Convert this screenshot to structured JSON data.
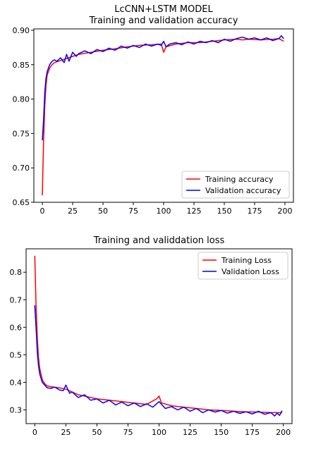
{
  "chart_data": [
    {
      "type": "line",
      "title": "LcCNN+LSTM MODEL\nTraining and validation accuracy",
      "xlabel": "",
      "ylabel": "",
      "xlim": [
        -7,
        207
      ],
      "ylim": [
        0.65,
        0.902
      ],
      "xticks": [
        0,
        25,
        50,
        75,
        100,
        125,
        150,
        175,
        200
      ],
      "yticks": [
        0.65,
        0.7,
        0.75,
        0.8,
        0.85,
        0.9
      ],
      "ytick_labels": [
        "0.65",
        "0.70",
        "0.75",
        "0.80",
        "0.85",
        "0.90"
      ],
      "legend": "lower-right",
      "grid": false,
      "series": [
        {
          "name": "Training accuracy",
          "color": "#ff0000",
          "x": [
            0,
            1,
            2,
            3,
            4,
            6,
            8,
            10,
            15,
            20,
            25,
            30,
            40,
            50,
            60,
            70,
            75,
            80,
            90,
            98,
            100,
            102,
            110,
            120,
            130,
            140,
            150,
            160,
            165,
            170,
            180,
            190,
            195,
            199
          ],
          "y": [
            0.66,
            0.74,
            0.79,
            0.82,
            0.835,
            0.845,
            0.85,
            0.853,
            0.856,
            0.859,
            0.862,
            0.865,
            0.868,
            0.871,
            0.873,
            0.876,
            0.877,
            0.878,
            0.879,
            0.88,
            0.868,
            0.876,
            0.88,
            0.882,
            0.882,
            0.884,
            0.886,
            0.887,
            0.886,
            0.887,
            0.886,
            0.887,
            0.888,
            0.884
          ]
        },
        {
          "name": "Validation accuracy",
          "color": "#0000ff",
          "x": [
            0,
            1,
            2,
            3,
            4,
            6,
            8,
            10,
            12,
            15,
            18,
            20,
            22,
            25,
            28,
            30,
            35,
            40,
            45,
            50,
            55,
            60,
            65,
            70,
            75,
            80,
            85,
            90,
            95,
            98,
            100,
            102,
            105,
            110,
            115,
            120,
            125,
            130,
            135,
            140,
            145,
            150,
            155,
            160,
            165,
            170,
            175,
            180,
            185,
            190,
            195,
            197,
            199
          ],
          "y": [
            0.74,
            0.77,
            0.81,
            0.83,
            0.84,
            0.85,
            0.855,
            0.857,
            0.855,
            0.86,
            0.853,
            0.865,
            0.855,
            0.868,
            0.862,
            0.866,
            0.87,
            0.866,
            0.872,
            0.869,
            0.874,
            0.871,
            0.877,
            0.874,
            0.878,
            0.875,
            0.88,
            0.877,
            0.88,
            0.878,
            0.884,
            0.876,
            0.88,
            0.882,
            0.879,
            0.883,
            0.88,
            0.884,
            0.882,
            0.885,
            0.882,
            0.887,
            0.884,
            0.888,
            0.89,
            0.887,
            0.889,
            0.886,
            0.889,
            0.885,
            0.888,
            0.892,
            0.888
          ]
        }
      ]
    },
    {
      "type": "line",
      "title": "Training and validdation loss",
      "xlabel": "",
      "ylabel": "",
      "xlim": [
        -7,
        207
      ],
      "ylim": [
        0.25,
        0.885
      ],
      "xticks": [
        0,
        25,
        50,
        75,
        100,
        125,
        150,
        175,
        200
      ],
      "yticks": [
        0.3,
        0.4,
        0.5,
        0.6,
        0.7,
        0.8
      ],
      "ytick_labels": [
        "0.3",
        "0.4",
        "0.5",
        "0.6",
        "0.7",
        "0.8"
      ],
      "legend": "upper-right",
      "grid": false,
      "series": [
        {
          "name": "Training Loss",
          "color": "#ff0000",
          "x": [
            0,
            1,
            2,
            3,
            4,
            6,
            8,
            10,
            15,
            20,
            25,
            30,
            35,
            40,
            50,
            60,
            70,
            80,
            90,
            98,
            100,
            102,
            110,
            120,
            130,
            140,
            150,
            160,
            170,
            180,
            190,
            199
          ],
          "y": [
            0.86,
            0.68,
            0.56,
            0.49,
            0.45,
            0.41,
            0.395,
            0.387,
            0.383,
            0.38,
            0.375,
            0.365,
            0.355,
            0.35,
            0.34,
            0.335,
            0.33,
            0.325,
            0.32,
            0.34,
            0.35,
            0.325,
            0.315,
            0.31,
            0.305,
            0.3,
            0.298,
            0.295,
            0.293,
            0.292,
            0.29,
            0.29
          ]
        },
        {
          "name": "Validation Loss",
          "color": "#0000ff",
          "x": [
            0,
            1,
            2,
            3,
            4,
            6,
            8,
            10,
            13,
            16,
            20,
            23,
            25,
            28,
            30,
            35,
            40,
            45,
            50,
            55,
            60,
            65,
            70,
            75,
            80,
            85,
            90,
            95,
            100,
            105,
            110,
            115,
            120,
            125,
            130,
            135,
            140,
            145,
            150,
            155,
            160,
            165,
            170,
            175,
            180,
            185,
            190,
            193,
            195,
            197,
            199
          ],
          "y": [
            0.68,
            0.6,
            0.51,
            0.46,
            0.43,
            0.4,
            0.39,
            0.38,
            0.378,
            0.383,
            0.372,
            0.37,
            0.39,
            0.36,
            0.365,
            0.345,
            0.355,
            0.335,
            0.34,
            0.325,
            0.335,
            0.318,
            0.328,
            0.315,
            0.325,
            0.312,
            0.322,
            0.31,
            0.33,
            0.305,
            0.312,
            0.3,
            0.31,
            0.295,
            0.305,
            0.29,
            0.3,
            0.292,
            0.298,
            0.288,
            0.295,
            0.287,
            0.293,
            0.285,
            0.295,
            0.284,
            0.29,
            0.278,
            0.288,
            0.28,
            0.297
          ]
        }
      ]
    }
  ]
}
